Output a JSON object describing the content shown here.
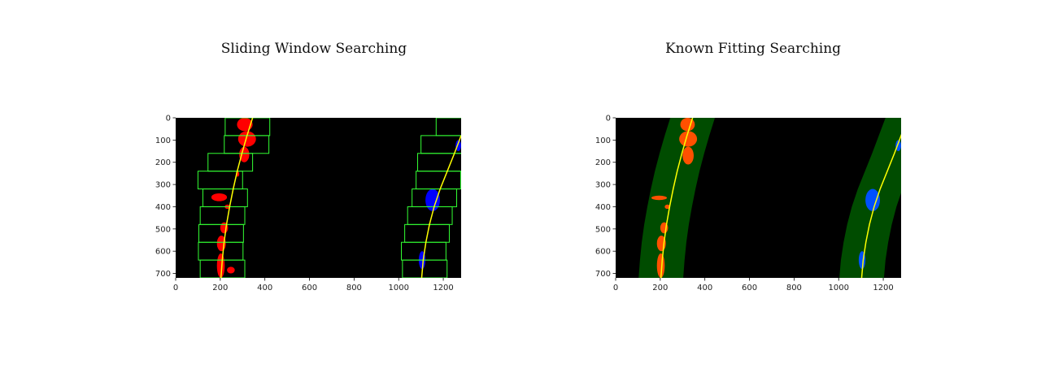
{
  "chart_data": [
    {
      "type": "image-plot",
      "title": "Sliding Window Searching",
      "xlim": [
        0,
        1280
      ],
      "ylim": [
        720,
        0
      ],
      "xticks": [
        0,
        200,
        400,
        600,
        800,
        1000,
        1200
      ],
      "yticks": [
        0,
        100,
        200,
        300,
        400,
        500,
        600,
        700
      ],
      "grid": false,
      "background_color": "#000000",
      "left_pixels_color": "#ff0000",
      "right_pixels_color": "#0000ff",
      "fit_line_color": "#ffff00",
      "window_color": "#33ff33",
      "fits": {
        "left": [
          [
            0,
            345
          ],
          [
            80,
            320
          ],
          [
            160,
            297
          ],
          [
            240,
            276
          ],
          [
            320,
            258
          ],
          [
            400,
            242
          ],
          [
            480,
            228
          ],
          [
            560,
            217
          ],
          [
            640,
            209
          ],
          [
            720,
            203
          ]
        ],
        "right": [
          [
            80,
            1280
          ],
          [
            160,
            1250
          ],
          [
            240,
            1218
          ],
          [
            320,
            1186
          ],
          [
            400,
            1159
          ],
          [
            480,
            1138
          ],
          [
            560,
            1122
          ],
          [
            640,
            1110
          ],
          [
            720,
            1103
          ]
        ]
      },
      "windows": {
        "left": [
          {
            "x": [
              222,
              422
            ],
            "y": [
              0,
              80
            ]
          },
          {
            "x": [
              218,
              418
            ],
            "y": [
              80,
              160
            ]
          },
          {
            "x": [
              145,
              345
            ],
            "y": [
              160,
              240
            ]
          },
          {
            "x": [
              100,
              300
            ],
            "y": [
              240,
              320
            ]
          },
          {
            "x": [
              122,
              322
            ],
            "y": [
              320,
              400
            ]
          },
          {
            "x": [
              110,
              310
            ],
            "y": [
              400,
              480
            ]
          },
          {
            "x": [
              104,
              304
            ],
            "y": [
              480,
              560
            ]
          },
          {
            "x": [
              102,
              302
            ],
            "y": [
              560,
              640
            ]
          },
          {
            "x": [
              110,
              310
            ],
            "y": [
              640,
              720
            ]
          }
        ],
        "right": [
          {
            "x": [
              1168,
              1368
            ],
            "y": [
              0,
              80
            ]
          },
          {
            "x": [
              1100,
              1300
            ],
            "y": [
              80,
              160
            ]
          },
          {
            "x": [
              1085,
              1285
            ],
            "y": [
              160,
              240
            ]
          },
          {
            "x": [
              1078,
              1278
            ],
            "y": [
              240,
              320
            ]
          },
          {
            "x": [
              1060,
              1260
            ],
            "y": [
              320,
              400
            ]
          },
          {
            "x": [
              1040,
              1240
            ],
            "y": [
              400,
              480
            ]
          },
          {
            "x": [
              1027,
              1227
            ],
            "y": [
              480,
              560
            ]
          },
          {
            "x": [
              1012,
              1212
            ],
            "y": [
              560,
              640
            ]
          },
          {
            "x": [
              1017,
              1217
            ],
            "y": [
              640,
              720
            ]
          }
        ]
      },
      "pixel_clusters": {
        "left": [
          {
            "x": [
              275,
              345
            ],
            "y": [
              0,
              60
            ]
          },
          {
            "x": [
              280,
              360
            ],
            "y": [
              60,
              130
            ]
          },
          {
            "x": [
              285,
              330
            ],
            "y": [
              130,
              200
            ]
          },
          {
            "x": [
              270,
              285
            ],
            "y": [
              240,
              265
            ]
          },
          {
            "x": [
              160,
              230
            ],
            "y": [
              340,
              375
            ]
          },
          {
            "x": [
              220,
              245
            ],
            "y": [
              390,
              410
            ]
          },
          {
            "x": [
              200,
              235
            ],
            "y": [
              470,
              520
            ]
          },
          {
            "x": [
              185,
              225
            ],
            "y": [
              530,
              600
            ]
          },
          {
            "x": [
              185,
              220
            ],
            "y": [
              610,
              720
            ]
          },
          {
            "x": [
              230,
              265
            ],
            "y": [
              670,
              700
            ]
          }
        ],
        "right": [
          {
            "x": [
              1255,
              1280
            ],
            "y": [
              100,
              150
            ]
          },
          {
            "x": [
              1120,
              1185
            ],
            "y": [
              320,
              420
            ]
          },
          {
            "x": [
              1090,
              1120
            ],
            "y": [
              600,
              680
            ]
          }
        ]
      }
    },
    {
      "type": "image-plot",
      "title": "Known Fitting Searching",
      "xlim": [
        0,
        1280
      ],
      "ylim": [
        720,
        0
      ],
      "xticks": [
        0,
        200,
        400,
        600,
        800,
        1000,
        1200
      ],
      "yticks": [
        0,
        100,
        200,
        300,
        400,
        500,
        600,
        700
      ],
      "grid": false,
      "background_color": "#000000",
      "left_pixels_color": "#ff5000",
      "right_pixels_color": "#0050ff",
      "fit_line_color": "#ffff00",
      "search_band_color": "#004c00",
      "search_margin": 100,
      "fits": {
        "left": [
          [
            0,
            345
          ],
          [
            80,
            320
          ],
          [
            160,
            297
          ],
          [
            240,
            276
          ],
          [
            320,
            258
          ],
          [
            400,
            242
          ],
          [
            480,
            228
          ],
          [
            560,
            217
          ],
          [
            640,
            209
          ],
          [
            720,
            203
          ]
        ],
        "right": [
          [
            0,
            1310
          ],
          [
            80,
            1280
          ],
          [
            160,
            1250
          ],
          [
            240,
            1218
          ],
          [
            320,
            1186
          ],
          [
            400,
            1159
          ],
          [
            480,
            1138
          ],
          [
            560,
            1122
          ],
          [
            640,
            1110
          ],
          [
            720,
            1103
          ]
        ]
      },
      "pixel_clusters": {
        "left": [
          {
            "x": [
              290,
              355
            ],
            "y": [
              0,
              60
            ]
          },
          {
            "x": [
              285,
              365
            ],
            "y": [
              60,
              130
            ]
          },
          {
            "x": [
              300,
              350
            ],
            "y": [
              130,
              210
            ]
          },
          {
            "x": [
              160,
              230
            ],
            "y": [
              350,
              370
            ]
          },
          {
            "x": [
              220,
              245
            ],
            "y": [
              390,
              410
            ]
          },
          {
            "x": [
              200,
              235
            ],
            "y": [
              470,
              520
            ]
          },
          {
            "x": [
              185,
              225
            ],
            "y": [
              530,
              600
            ]
          },
          {
            "x": [
              185,
              220
            ],
            "y": [
              610,
              720
            ]
          }
        ],
        "right": [
          {
            "x": [
              1255,
              1280
            ],
            "y": [
              100,
              150
            ]
          },
          {
            "x": [
              1120,
              1185
            ],
            "y": [
              320,
              420
            ]
          },
          {
            "x": [
              1090,
              1120
            ],
            "y": [
              600,
              680
            ]
          }
        ]
      }
    }
  ]
}
